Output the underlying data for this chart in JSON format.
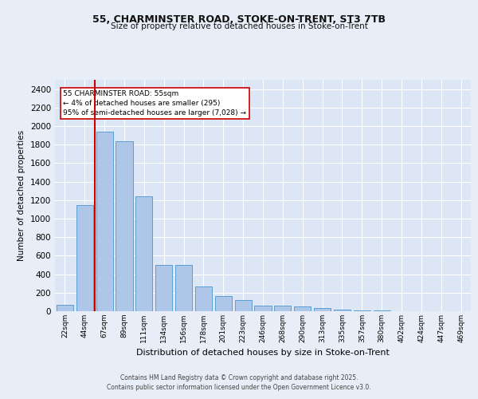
{
  "title1": "55, CHARMINSTER ROAD, STOKE-ON-TRENT, ST3 7TB",
  "title2": "Size of property relative to detached houses in Stoke-on-Trent",
  "xlabel": "Distribution of detached houses by size in Stoke-on-Trent",
  "ylabel": "Number of detached properties",
  "categories": [
    "22sqm",
    "44sqm",
    "67sqm",
    "89sqm",
    "111sqm",
    "134sqm",
    "156sqm",
    "178sqm",
    "201sqm",
    "223sqm",
    "246sqm",
    "268sqm",
    "290sqm",
    "313sqm",
    "335sqm",
    "357sqm",
    "380sqm",
    "402sqm",
    "424sqm",
    "447sqm",
    "469sqm"
  ],
  "values": [
    70,
    1150,
    1940,
    1840,
    1240,
    500,
    500,
    270,
    160,
    120,
    60,
    60,
    50,
    35,
    15,
    10,
    5,
    3,
    2,
    1,
    1
  ],
  "bar_color": "#aec6e8",
  "bar_edge_color": "#5a9fd4",
  "red_line_x": 1.5,
  "annotation_text": "55 CHARMINSTER ROAD: 55sqm\n← 4% of detached houses are smaller (295)\n95% of semi-detached houses are larger (7,028) →",
  "annotation_box_color": "#ffffff",
  "annotation_edge_color": "#cc0000",
  "ylim": [
    0,
    2500
  ],
  "yticks": [
    0,
    200,
    400,
    600,
    800,
    1000,
    1200,
    1400,
    1600,
    1800,
    2000,
    2200,
    2400
  ],
  "bg_color": "#e8eef7",
  "plot_bg_color": "#dce6f5",
  "grid_color": "#ffffff",
  "footer1": "Contains HM Land Registry data © Crown copyright and database right 2025.",
  "footer2": "Contains public sector information licensed under the Open Government Licence v3.0."
}
